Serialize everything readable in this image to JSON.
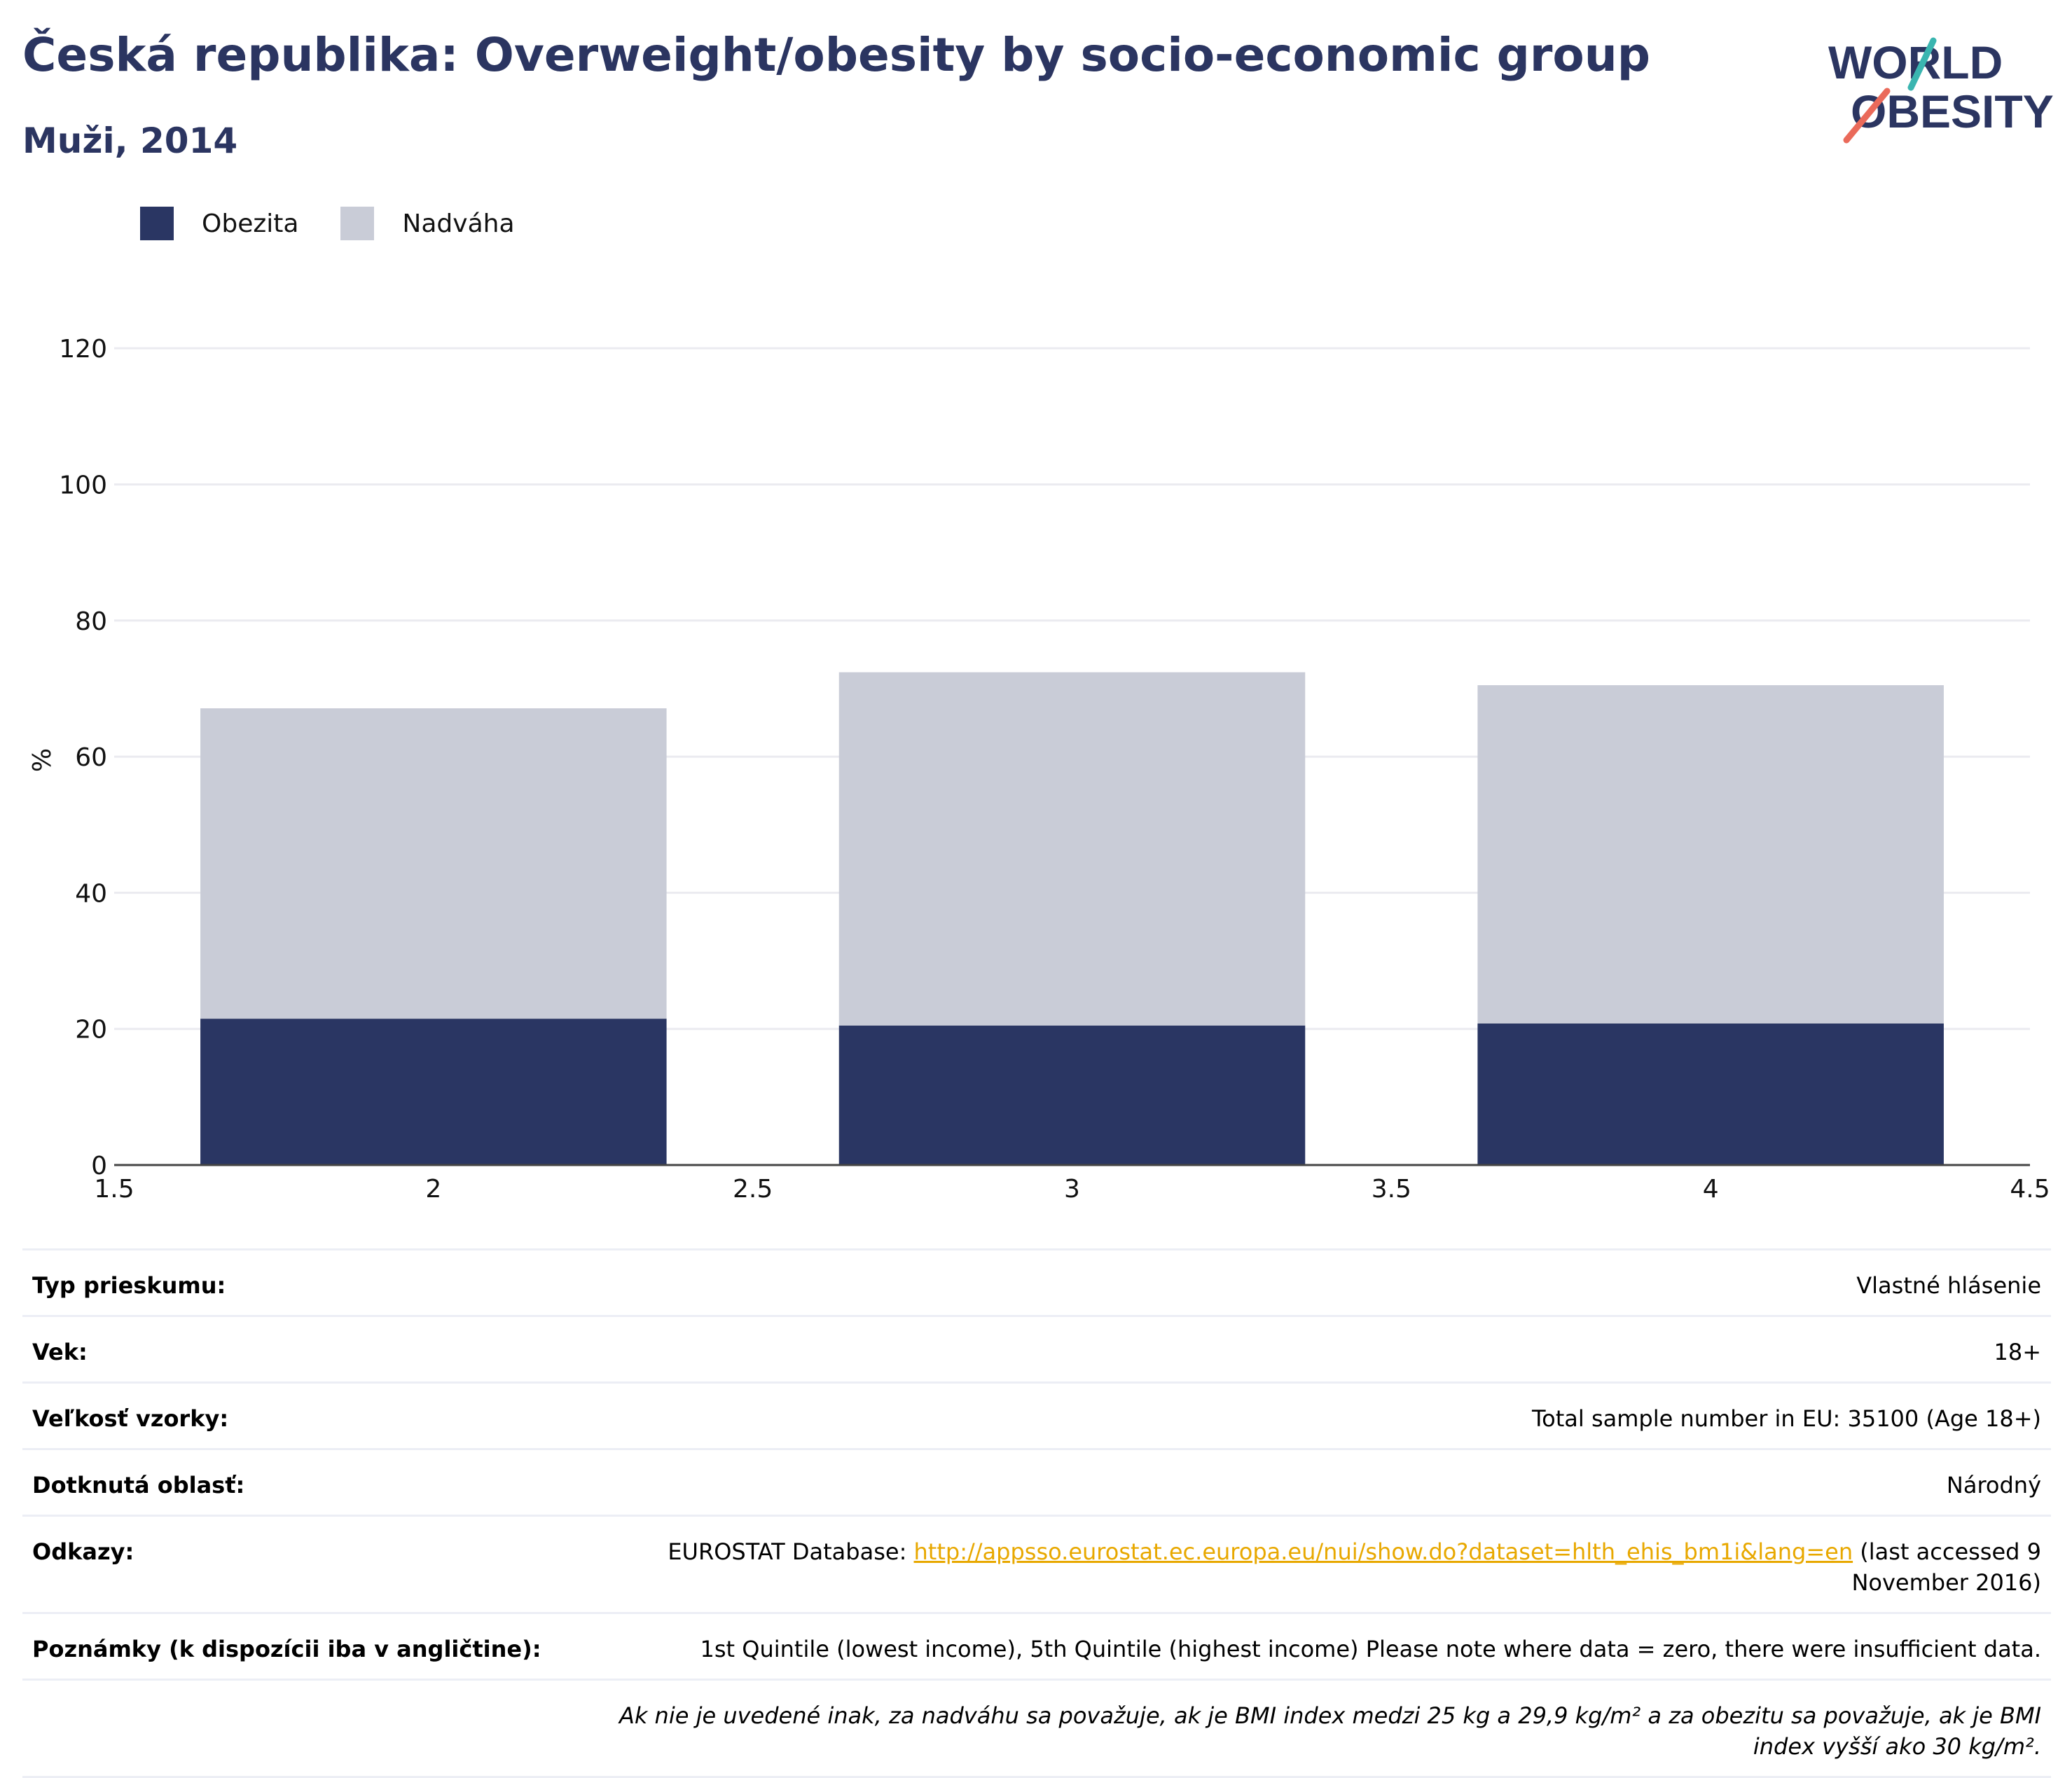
{
  "header": {
    "title": "Česká republika: Overweight/obesity by socio-economic group",
    "subtitle": "Muži, 2014"
  },
  "logo": {
    "line1": "WORLD",
    "line2": "OBESITY"
  },
  "colors": {
    "obesity": "#2a3663",
    "overweight": "#c9ccd7",
    "title": "#2b3561",
    "link": "#e8a800"
  },
  "chart_data": {
    "type": "bar",
    "stacked": true,
    "title": "",
    "xlabel": "",
    "ylabel": "%",
    "x": [
      2,
      3,
      4
    ],
    "xlim": [
      1.5,
      4.5
    ],
    "xticks": [
      "1.5",
      "2",
      "2.5",
      "3",
      "3.5",
      "4",
      "4.5"
    ],
    "ylim": [
      0,
      130
    ],
    "yticks": [
      "0",
      "20",
      "40",
      "60",
      "80",
      "100",
      "120"
    ],
    "grid": true,
    "legend_position": "top-left",
    "series": [
      {
        "name": "Obezita",
        "values": [
          21.5,
          20.5,
          20.8
        ]
      },
      {
        "name": "Nadváha",
        "values": [
          45.6,
          51.9,
          49.7
        ]
      }
    ]
  },
  "info": {
    "rows": [
      {
        "label": "Typ prieskumu:",
        "value": "Vlastné hlásenie"
      },
      {
        "label": "Vek:",
        "value": "18+"
      },
      {
        "label": "Veľkosť vzorky:",
        "value": "Total sample number in EU: 35100 (Age 18+)"
      },
      {
        "label": "Dotknutá oblasť:",
        "value": "Národný"
      }
    ],
    "references": {
      "label": "Odkazy:",
      "prefix": "EUROSTAT Database: ",
      "link": "http://appsso.eurostat.ec.europa.eu/nui/show.do?dataset=hlth_ehis_bm1i&lang=en",
      "suffix": " (last accessed 9 November 2016)"
    },
    "notes": {
      "label": "Poznámky (k dispozícii iba v angličtine):",
      "value": "1st Quintile (lowest income), 5th Quintile (highest income) Please note where data = zero, there were insufficient data."
    },
    "footnote": "Ak nie je uvedené inak, za nadváhu sa považuje, ak je BMI index medzi 25 kg a 29,9 kg/m² a za obezitu sa považuje, ak je BMI index vyšší ako 30 kg/m²."
  }
}
